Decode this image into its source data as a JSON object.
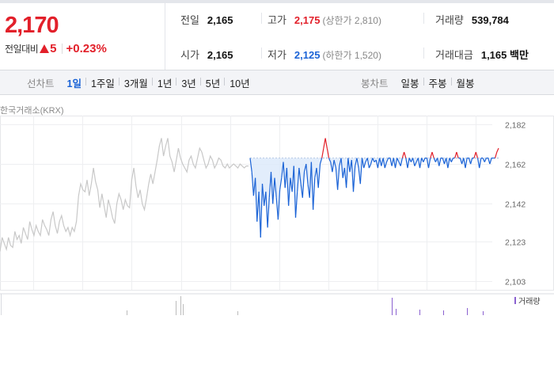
{
  "summary": {
    "price": "2,170",
    "diff_label": "전일대비",
    "diff_value": "5",
    "diff_rate": "+0.23%",
    "prev": {
      "label": "전일",
      "value": "2,165"
    },
    "open": {
      "label": "시가",
      "value": "2,165"
    },
    "high": {
      "label": "고가",
      "value": "2,175",
      "limit_text": "(상한가 2,810)"
    },
    "low": {
      "label": "저가",
      "value": "2,125",
      "limit_text": "(하한가 1,520)"
    },
    "volume": {
      "label": "거래량",
      "value": "539,784"
    },
    "amount": {
      "label": "거래대금",
      "value": "1,165 백만"
    }
  },
  "controls": {
    "line_title": "선차트",
    "line_tabs": [
      "1일",
      "1주일",
      "3개월",
      "1년",
      "3년",
      "5년",
      "10년"
    ],
    "line_active": 0,
    "candle_title": "봉차트",
    "candle_tabs": [
      "일봉",
      "주봉",
      "월봉"
    ]
  },
  "source_label": "한국거래소(KRX)",
  "colors": {
    "up": "#e2202a",
    "down": "#1b63d6",
    "prev_day": "#c8c8c8",
    "volume": "#8a60d0"
  },
  "chart_data": {
    "type": "line",
    "y_ticks": [
      "2,182",
      "2,162",
      "2,142",
      "2,123",
      "2,103"
    ],
    "y_range": [
      2103,
      2182
    ],
    "reference_price": 2165,
    "volume_legend": "거래량",
    "series": [
      {
        "values": [
          2118,
          2125,
          2122,
          2119,
          2125,
          2121,
          2120,
          2128,
          2124,
          2126,
          2122,
          2130,
          2127,
          2124,
          2133,
          2129,
          2126,
          2131,
          2128,
          2126,
          2134,
          2131,
          2129,
          2126,
          2134,
          2138,
          2131,
          2127,
          2133,
          2136,
          2131,
          2128,
          2130,
          2126,
          2130,
          2128,
          2133,
          2146,
          2152,
          2149,
          2148,
          2154,
          2146,
          2152,
          2160,
          2153,
          2149,
          2140,
          2147,
          2141,
          2135,
          2144,
          2140,
          2135,
          2132,
          2142,
          2147,
          2144,
          2139,
          2144,
          2141,
          2140,
          2154,
          2160,
          2151,
          2145,
          2149,
          2142,
          2139,
          2145,
          2152,
          2157,
          2152,
          2158,
          2164,
          2171,
          2175,
          2166,
          2171,
          2175,
          2166,
          2163,
          2158,
          2164,
          2170,
          2165,
          2162,
          2160,
          2158,
          2164,
          2166,
          2162,
          2160,
          2165,
          2170,
          2168,
          2164,
          2160,
          2162,
          2166,
          2164,
          2160,
          2162,
          2165,
          2164,
          2161,
          2160,
          2162,
          2160,
          2161,
          2162,
          2161,
          2160,
          2162,
          2161,
          2160,
          2161,
          2161
        ]
      },
      {
        "values": [
          2165,
          2158,
          2146,
          2155,
          2133,
          2148,
          2125,
          2152,
          2141,
          2148,
          2130,
          2145,
          2158,
          2142,
          2155,
          2145,
          2134,
          2149,
          2155,
          2163,
          2150,
          2160,
          2141,
          2155,
          2148,
          2161,
          2135,
          2148,
          2160,
          2152,
          2145,
          2158,
          2162,
          2152,
          2145,
          2163,
          2139,
          2155,
          2160,
          2150,
          2162,
          2165,
          2170,
          2175,
          2170,
          2165,
          2163,
          2158,
          2164,
          2160,
          2149,
          2161,
          2165,
          2155,
          2160,
          2150,
          2165,
          2158,
          2164,
          2148,
          2161,
          2165,
          2160,
          2152,
          2165,
          2160,
          2163,
          2165,
          2160,
          2162,
          2165,
          2163,
          2164,
          2160,
          2165,
          2161,
          2165,
          2160,
          2163,
          2165,
          2165,
          2161,
          2165,
          2160,
          2165,
          2163,
          2161,
          2165,
          2168,
          2165,
          2160,
          2165,
          2163,
          2165,
          2161,
          2163,
          2165,
          2160,
          2165,
          2163,
          2165,
          2165,
          2160,
          2165,
          2168,
          2165,
          2163,
          2165,
          2161,
          2165,
          2165,
          2162,
          2165,
          2160,
          2165,
          2163,
          2165,
          2165,
          2168,
          2165,
          2165,
          2162,
          2165,
          2160,
          2165,
          2165,
          2162,
          2165,
          2165,
          2168,
          2165,
          2160,
          2165,
          2165,
          2163,
          2165,
          2165,
          2162,
          2165,
          2165,
          2165,
          2168,
          2170
        ]
      }
    ]
  }
}
